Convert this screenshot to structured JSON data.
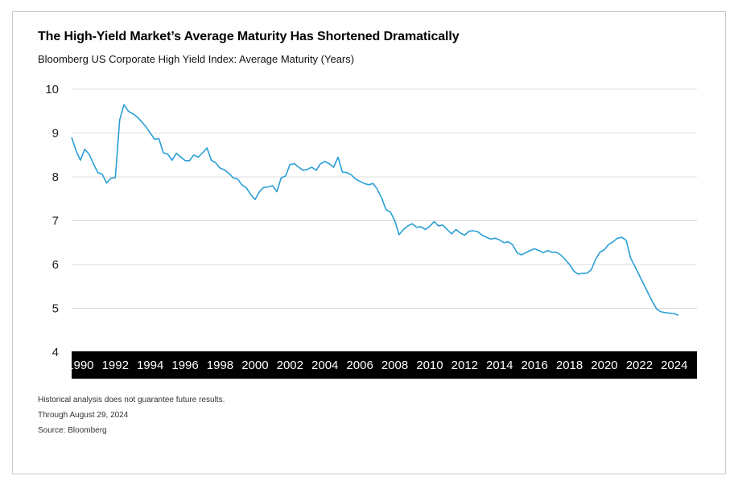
{
  "title": "The High-Yield Market’s Average Maturity Has Shortened Dramatically",
  "subtitle": "Bloomberg US Corporate High Yield Index: Average Maturity (Years)",
  "footnotes": {
    "disclaimer": "Historical analysis does not guarantee future results.",
    "through": "Through August 29, 2024",
    "source": "Source: Bloomberg"
  },
  "colors": {
    "line": "#2a9fd6",
    "grid": "#dcdcdc",
    "axis_band": "#000000",
    "axis_text": "#ffffff"
  },
  "chart_data": {
    "type": "line",
    "title": "The High-Yield Market’s Average Maturity Has Shortened Dramatically",
    "subtitle": "Bloomberg US Corporate High Yield Index: Average Maturity (Years)",
    "xlabel": "",
    "ylabel": "",
    "ylim": [
      4,
      10
    ],
    "xlim": [
      1989.5,
      2025.3
    ],
    "y_ticks": [
      10,
      9,
      8,
      7,
      6,
      5,
      4
    ],
    "x_ticks": [
      1990,
      1992,
      1994,
      1996,
      1998,
      2000,
      2002,
      2004,
      2006,
      2008,
      2010,
      2012,
      2014,
      2016,
      2018,
      2020,
      2022,
      2024
    ],
    "grid": true,
    "legend": "none",
    "series": [
      {
        "values": [
          [
            1989.5,
            8.9
          ],
          [
            1989.75,
            8.6
          ],
          [
            1990.0,
            8.38
          ],
          [
            1990.25,
            8.63
          ],
          [
            1990.5,
            8.52
          ],
          [
            1990.75,
            8.3
          ],
          [
            1991.0,
            8.1
          ],
          [
            1991.25,
            8.06
          ],
          [
            1991.5,
            7.86
          ],
          [
            1991.75,
            7.97
          ],
          [
            1992.0,
            7.98
          ],
          [
            1992.25,
            9.3
          ],
          [
            1992.5,
            9.65
          ],
          [
            1992.75,
            9.5
          ],
          [
            1993.0,
            9.44
          ],
          [
            1993.25,
            9.37
          ],
          [
            1993.5,
            9.26
          ],
          [
            1993.75,
            9.15
          ],
          [
            1994.0,
            9.0
          ],
          [
            1994.25,
            8.86
          ],
          [
            1994.5,
            8.87
          ],
          [
            1994.75,
            8.55
          ],
          [
            1995.0,
            8.52
          ],
          [
            1995.25,
            8.38
          ],
          [
            1995.5,
            8.54
          ],
          [
            1995.75,
            8.45
          ],
          [
            1996.0,
            8.37
          ],
          [
            1996.25,
            8.37
          ],
          [
            1996.5,
            8.5
          ],
          [
            1996.75,
            8.45
          ],
          [
            1997.0,
            8.55
          ],
          [
            1997.25,
            8.66
          ],
          [
            1997.5,
            8.38
          ],
          [
            1997.75,
            8.32
          ],
          [
            1998.0,
            8.2
          ],
          [
            1998.25,
            8.16
          ],
          [
            1998.5,
            8.08
          ],
          [
            1998.75,
            7.98
          ],
          [
            1999.0,
            7.95
          ],
          [
            1999.25,
            7.82
          ],
          [
            1999.5,
            7.75
          ],
          [
            1999.75,
            7.6
          ],
          [
            2000.0,
            7.48
          ],
          [
            2000.25,
            7.66
          ],
          [
            2000.5,
            7.76
          ],
          [
            2000.75,
            7.77
          ],
          [
            2001.0,
            7.8
          ],
          [
            2001.25,
            7.66
          ],
          [
            2001.5,
            7.98
          ],
          [
            2001.75,
            8.02
          ],
          [
            2002.0,
            8.28
          ],
          [
            2002.25,
            8.3
          ],
          [
            2002.5,
            8.22
          ],
          [
            2002.75,
            8.15
          ],
          [
            2003.0,
            8.17
          ],
          [
            2003.25,
            8.22
          ],
          [
            2003.5,
            8.15
          ],
          [
            2003.75,
            8.3
          ],
          [
            2004.0,
            8.35
          ],
          [
            2004.25,
            8.3
          ],
          [
            2004.5,
            8.22
          ],
          [
            2004.75,
            8.45
          ],
          [
            2005.0,
            8.11
          ],
          [
            2005.25,
            8.1
          ],
          [
            2005.5,
            8.05
          ],
          [
            2005.75,
            7.95
          ],
          [
            2006.0,
            7.9
          ],
          [
            2006.25,
            7.85
          ],
          [
            2006.5,
            7.82
          ],
          [
            2006.75,
            7.85
          ],
          [
            2007.0,
            7.72
          ],
          [
            2007.25,
            7.52
          ],
          [
            2007.5,
            7.25
          ],
          [
            2007.75,
            7.2
          ],
          [
            2008.0,
            7.0
          ],
          [
            2008.25,
            6.68
          ],
          [
            2008.5,
            6.8
          ],
          [
            2008.75,
            6.88
          ],
          [
            2009.0,
            6.93
          ],
          [
            2009.25,
            6.85
          ],
          [
            2009.5,
            6.86
          ],
          [
            2009.75,
            6.8
          ],
          [
            2010.0,
            6.87
          ],
          [
            2010.25,
            6.98
          ],
          [
            2010.5,
            6.88
          ],
          [
            2010.75,
            6.9
          ],
          [
            2011.0,
            6.8
          ],
          [
            2011.25,
            6.7
          ],
          [
            2011.5,
            6.8
          ],
          [
            2011.75,
            6.72
          ],
          [
            2012.0,
            6.67
          ],
          [
            2012.25,
            6.76
          ],
          [
            2012.5,
            6.77
          ],
          [
            2012.75,
            6.75
          ],
          [
            2013.0,
            6.67
          ],
          [
            2013.25,
            6.62
          ],
          [
            2013.5,
            6.58
          ],
          [
            2013.75,
            6.6
          ],
          [
            2014.0,
            6.56
          ],
          [
            2014.25,
            6.5
          ],
          [
            2014.5,
            6.52
          ],
          [
            2014.75,
            6.45
          ],
          [
            2015.0,
            6.27
          ],
          [
            2015.25,
            6.22
          ],
          [
            2015.5,
            6.27
          ],
          [
            2015.75,
            6.32
          ],
          [
            2016.0,
            6.36
          ],
          [
            2016.25,
            6.32
          ],
          [
            2016.5,
            6.27
          ],
          [
            2016.75,
            6.32
          ],
          [
            2017.0,
            6.28
          ],
          [
            2017.25,
            6.28
          ],
          [
            2017.5,
            6.22
          ],
          [
            2017.75,
            6.12
          ],
          [
            2018.0,
            6.0
          ],
          [
            2018.25,
            5.85
          ],
          [
            2018.5,
            5.78
          ],
          [
            2018.75,
            5.8
          ],
          [
            2019.0,
            5.8
          ],
          [
            2019.25,
            5.88
          ],
          [
            2019.5,
            6.12
          ],
          [
            2019.75,
            6.28
          ],
          [
            2020.0,
            6.34
          ],
          [
            2020.25,
            6.46
          ],
          [
            2020.5,
            6.52
          ],
          [
            2020.75,
            6.6
          ],
          [
            2021.0,
            6.62
          ],
          [
            2021.25,
            6.55
          ],
          [
            2021.5,
            6.15
          ],
          [
            2021.75,
            5.95
          ],
          [
            2022.0,
            5.75
          ],
          [
            2022.25,
            5.55
          ],
          [
            2022.5,
            5.35
          ],
          [
            2022.75,
            5.15
          ],
          [
            2023.0,
            4.98
          ],
          [
            2023.25,
            4.92
          ],
          [
            2023.5,
            4.9
          ],
          [
            2023.75,
            4.89
          ],
          [
            2024.0,
            4.88
          ],
          [
            2024.25,
            4.84
          ]
        ]
      }
    ]
  }
}
